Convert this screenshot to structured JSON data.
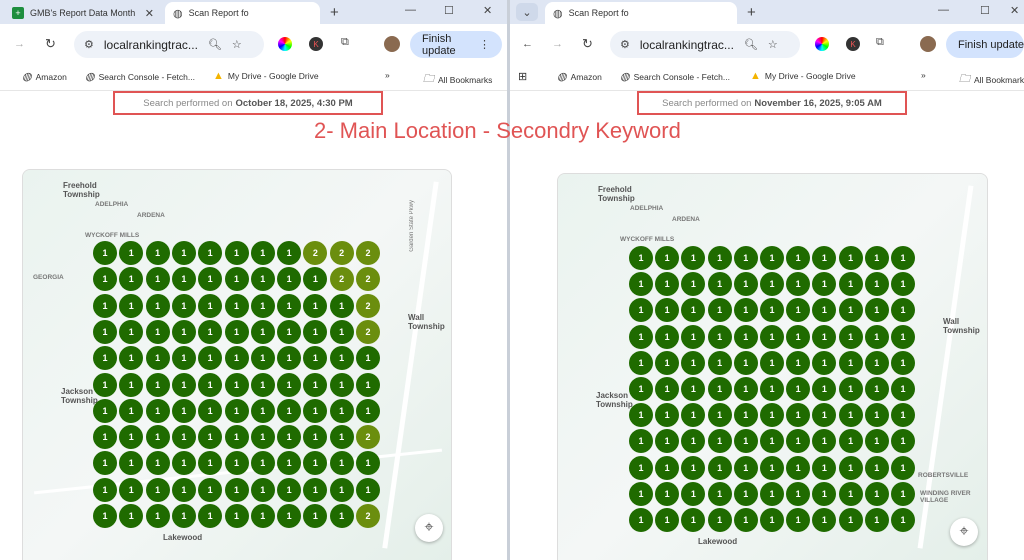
{
  "left": {
    "tabs": [
      {
        "label": "GMB's Report Data Month",
        "icon": "sheets-icon"
      },
      {
        "label": "Scan Report fo",
        "icon": "globe-icon"
      }
    ],
    "url": "localrankingtrac...",
    "finish_update": "Finish update",
    "bookmarks": [
      "Amazon",
      "Search Console - Fetch...",
      "My Drive - Google Drive"
    ],
    "all_bookmarks": "All Bookmarks",
    "search_prefix": "Search performed on",
    "search_date": "October 18, 2025, 4:30 PM",
    "grid": [
      [
        1,
        1,
        1,
        1,
        1,
        1,
        1,
        1,
        2,
        2,
        2
      ],
      [
        1,
        1,
        1,
        1,
        1,
        1,
        1,
        1,
        1,
        2,
        2
      ],
      [
        1,
        1,
        1,
        1,
        1,
        1,
        1,
        1,
        1,
        1,
        2
      ],
      [
        1,
        1,
        1,
        1,
        1,
        1,
        1,
        1,
        1,
        1,
        2
      ],
      [
        1,
        1,
        1,
        1,
        1,
        1,
        1,
        1,
        1,
        1,
        1
      ],
      [
        1,
        1,
        1,
        1,
        1,
        1,
        1,
        1,
        1,
        1,
        1
      ],
      [
        1,
        1,
        1,
        1,
        1,
        1,
        1,
        1,
        1,
        1,
        1
      ],
      [
        1,
        1,
        1,
        1,
        1,
        1,
        1,
        1,
        1,
        1,
        2
      ],
      [
        1,
        1,
        1,
        1,
        1,
        1,
        1,
        1,
        1,
        1,
        1
      ],
      [
        1,
        1,
        1,
        1,
        1,
        1,
        1,
        1,
        1,
        1,
        1
      ],
      [
        1,
        1,
        1,
        1,
        1,
        1,
        1,
        1,
        1,
        1,
        2
      ]
    ]
  },
  "right": {
    "tabs": [
      {
        "label": "Scan Report fo",
        "icon": "globe-icon"
      }
    ],
    "url": "localrankingtrac...",
    "finish_update": "Finish update",
    "bookmarks": [
      "Amazon",
      "Search Console - Fetch...",
      "My Drive - Google Drive"
    ],
    "all_bookmarks": "All Bookmarks",
    "search_prefix": "Search performed on",
    "search_date": "November 16, 2025, 9:05 AM",
    "grid": [
      [
        1,
        1,
        1,
        1,
        1,
        1,
        1,
        1,
        1,
        1,
        1
      ],
      [
        1,
        1,
        1,
        1,
        1,
        1,
        1,
        1,
        1,
        1,
        1
      ],
      [
        1,
        1,
        1,
        1,
        1,
        1,
        1,
        1,
        1,
        1,
        1
      ],
      [
        1,
        1,
        1,
        1,
        1,
        1,
        1,
        1,
        1,
        1,
        1
      ],
      [
        1,
        1,
        1,
        1,
        1,
        1,
        1,
        1,
        1,
        1,
        1
      ],
      [
        1,
        1,
        1,
        1,
        1,
        1,
        1,
        1,
        1,
        1,
        1
      ],
      [
        1,
        1,
        1,
        1,
        1,
        1,
        1,
        1,
        1,
        1,
        1
      ],
      [
        1,
        1,
        1,
        1,
        1,
        1,
        1,
        1,
        1,
        1,
        1
      ],
      [
        1,
        1,
        1,
        1,
        1,
        1,
        1,
        1,
        1,
        1,
        1
      ],
      [
        1,
        1,
        1,
        1,
        1,
        1,
        1,
        1,
        1,
        1,
        1
      ],
      [
        1,
        1,
        1,
        1,
        1,
        1,
        1,
        1,
        1,
        1,
        1
      ]
    ]
  },
  "annotation": "2- Main Location - Secondry Keyword",
  "map_labels": {
    "freehold": "Freehold Township",
    "adelphia": "ADELPHIA",
    "ardena": "ARDENA",
    "wyckoff": "WYCKOFF MILLS",
    "georgia": "GEORGIA",
    "wall": "Wall Township",
    "jackson": "Jackson Township",
    "lakewood": "Lakewood",
    "robertsville": "ROBERTSVILLE",
    "winding": "WINDING RIVER VILLAGE",
    "parkway": "Garden State Pkwy"
  },
  "colors": {
    "rank1": "#1f6b00",
    "rank2": "#6b8e0e",
    "annotation": "#e05454"
  }
}
